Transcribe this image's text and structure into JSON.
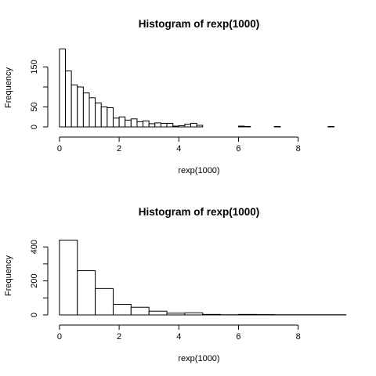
{
  "chart_data": [
    {
      "type": "bar",
      "title": "Histogram of rexp(1000)",
      "xlabel": "rexp(1000)",
      "ylabel": "Frequency",
      "xlim": [
        -0.05,
        9.4
      ],
      "ylim": [
        0,
        200
      ],
      "x_ticks": [
        0,
        2,
        4,
        6,
        8
      ],
      "y_ticks": [
        0,
        50,
        100,
        150
      ],
      "y_tick_labels": [
        "0",
        "50",
        "",
        "150"
      ],
      "bin_width": 0.2,
      "bin_edges_start": 0,
      "values": [
        195,
        140,
        105,
        100,
        85,
        73,
        60,
        50,
        48,
        22,
        25,
        17,
        20,
        13,
        15,
        8,
        10,
        9,
        9,
        2,
        3,
        7,
        9,
        4,
        0,
        0,
        0,
        0,
        0,
        0,
        2,
        1,
        0,
        0,
        0,
        0,
        1,
        0,
        0,
        0,
        0,
        0,
        0,
        0,
        0,
        1,
        0
      ]
    },
    {
      "type": "bar",
      "title": "Histogram of rexp(1000)",
      "xlabel": "rexp(1000)",
      "ylabel": "Frequency",
      "xlim": [
        -0.05,
        9.4
      ],
      "ylim": [
        0,
        470
      ],
      "x_ticks": [
        0,
        2,
        4,
        6,
        8
      ],
      "y_ticks": [
        0,
        200,
        400
      ],
      "y_minor_ticks": [
        100,
        300
      ],
      "bin_width": 0.6,
      "bin_edges_start": 0,
      "values": [
        440,
        260,
        155,
        62,
        45,
        22,
        10,
        12,
        3,
        1,
        3,
        2,
        1,
        1,
        1,
        1
      ]
    }
  ]
}
